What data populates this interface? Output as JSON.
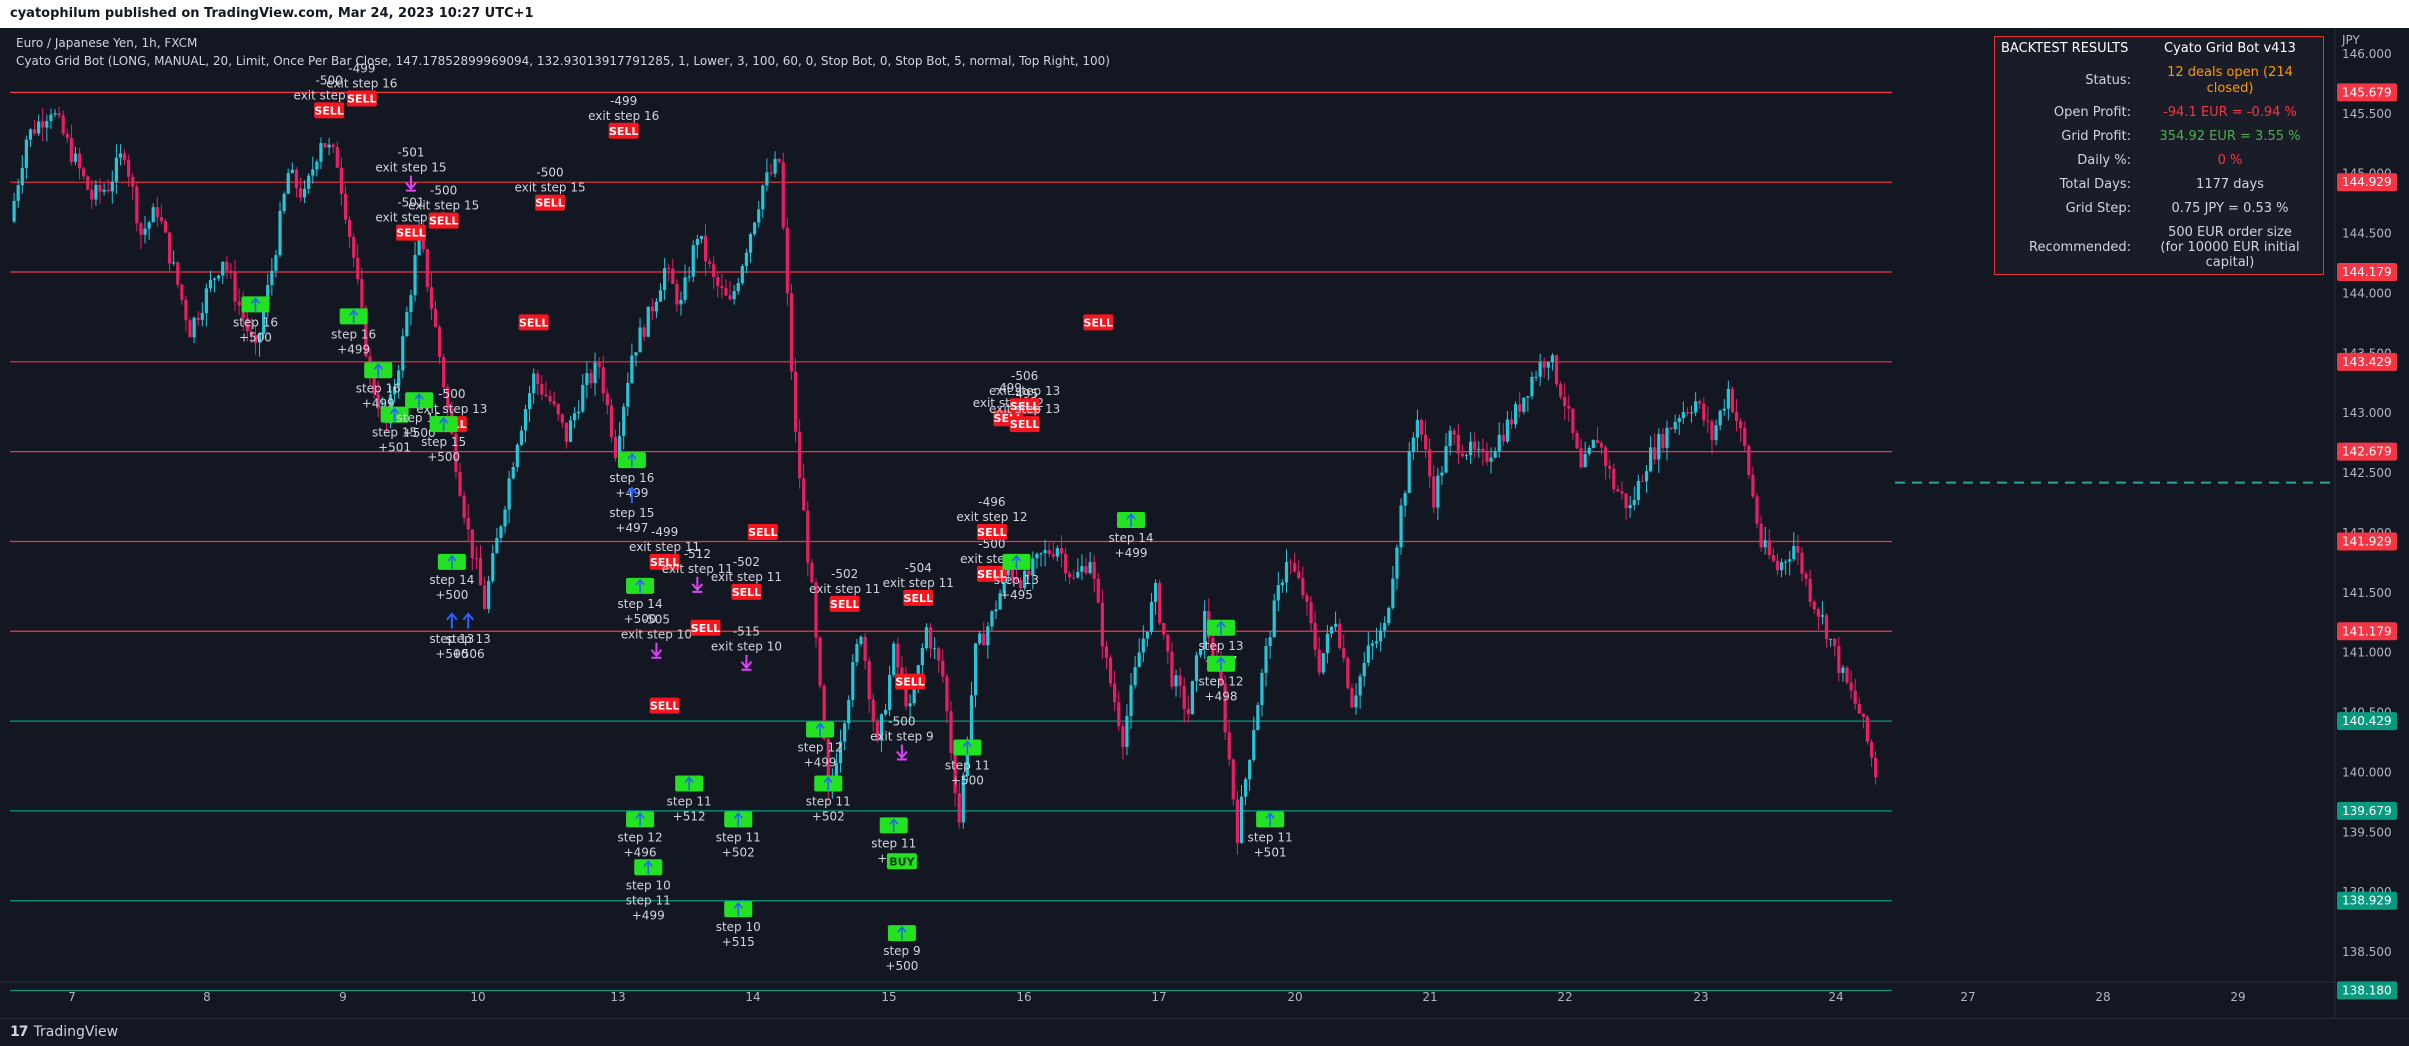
{
  "header": {
    "published": "cyatophilum published on TradingView.com, Mar 24, 2023 10:27 UTC+1"
  },
  "legend": {
    "symbol": "Euro / Japanese Yen, 1h, FXCM",
    "indicator": "Cyato Grid Bot (LONG, MANUAL, 20, Limit, Once Per Bar Close, 147.17852899969094, 132.93013917791285, 1, Lower, 3, 100, 60, 0, Stop Bot, 0, Stop Bot, 5, normal, Top Right, 100)"
  },
  "footer": {
    "brand": "TradingView"
  },
  "backtest": {
    "title": "BACKTEST RESULTS",
    "bot": "Cyato Grid Bot v413",
    "rows": [
      {
        "k": "Status:",
        "v": "12 deals open (214 closed)",
        "color": "#ff9800"
      },
      {
        "k": "Open Profit:",
        "v": "-94.1 EUR = -0.94 %",
        "color": "#f23645"
      },
      {
        "k": "Grid Profit:",
        "v": "354.92 EUR = 3.55 %",
        "color": "#4caf50"
      },
      {
        "k": "Daily %:",
        "v": "0 %",
        "color": "#f23645"
      },
      {
        "k": "Total Days:",
        "v": "1177 days",
        "color": "#d1d4dc"
      },
      {
        "k": "Grid Step:",
        "v": "0.75 JPY = 0.53 %",
        "color": "#d1d4dc"
      },
      {
        "k": "Recommended:",
        "v": "500 EUR order size",
        "v2": "(for 10000 EUR initial capital)",
        "color": "#d1d4dc"
      }
    ]
  },
  "colors": {
    "up": "#26c6da",
    "down": "#e91e63",
    "sell_line": "#f23645",
    "buy_line": "#089981",
    "sell_badge": "#f7151f",
    "buy_badge": "#22e222",
    "exit_marker": "#e040fb",
    "entry_arrow": "#2962ff"
  },
  "chart_data": {
    "type": "candlestick",
    "currency_label": "JPY",
    "x_ticks": [
      "7",
      "8",
      "9",
      "10",
      "13",
      "14",
      "15",
      "16",
      "17",
      "20",
      "21",
      "22",
      "23",
      "24",
      "27",
      "28",
      "29"
    ],
    "y_ticks": [
      "146.000",
      "145.500",
      "145.000",
      "144.500",
      "144.000",
      "143.500",
      "143.000",
      "142.500",
      "142.000",
      "141.500",
      "141.000",
      "140.500",
      "140.000",
      "139.500",
      "139.000",
      "138.500"
    ],
    "ylim": [
      138.1,
      146.2
    ],
    "grid_levels": [
      {
        "price": 145.679,
        "label": "145.679",
        "type": "sell"
      },
      {
        "price": 144.929,
        "label": "144.929",
        "type": "sell"
      },
      {
        "price": 144.179,
        "label": "144.179",
        "type": "sell"
      },
      {
        "price": 143.429,
        "label": "143.429",
        "type": "sell"
      },
      {
        "price": 142.679,
        "label": "142.679",
        "type": "sell"
      },
      {
        "price": 141.929,
        "label": "141.929",
        "type": "sell"
      },
      {
        "price": 141.179,
        "label": "141.179",
        "type": "sell"
      },
      {
        "price": 140.429,
        "label": "140.429",
        "type": "buy"
      },
      {
        "price": 139.679,
        "label": "139.679",
        "type": "buy"
      },
      {
        "price": 138.929,
        "label": "138.929",
        "type": "buy"
      },
      {
        "price": 138.18,
        "label": "138.180",
        "type": "buy"
      }
    ],
    "current_price_line": 142.42,
    "price_path": [
      [
        0,
        144.6
      ],
      [
        2,
        145.3
      ],
      [
        5,
        145.55
      ],
      [
        8,
        145.1
      ],
      [
        10,
        144.8
      ],
      [
        12,
        144.9
      ],
      [
        14,
        145.2
      ],
      [
        16,
        144.5
      ],
      [
        18,
        144.7
      ],
      [
        20,
        144.2
      ],
      [
        22,
        143.7
      ],
      [
        24,
        144.0
      ],
      [
        26,
        144.3
      ],
      [
        28,
        143.9
      ],
      [
        30,
        143.5
      ],
      [
        32,
        144.2
      ],
      [
        34,
        145.0
      ],
      [
        36,
        144.8
      ],
      [
        38,
        145.3
      ],
      [
        40,
        145.1
      ],
      [
        42,
        144.3
      ],
      [
        44,
        143.3
      ],
      [
        46,
        142.9
      ],
      [
        48,
        143.6
      ],
      [
        50,
        144.5
      ],
      [
        52,
        143.7
      ],
      [
        54,
        142.8
      ],
      [
        56,
        142.0
      ],
      [
        58,
        141.4
      ],
      [
        60,
        142.1
      ],
      [
        62,
        142.8
      ],
      [
        64,
        143.3
      ],
      [
        66,
        143.1
      ],
      [
        68,
        142.8
      ],
      [
        70,
        143.2
      ],
      [
        72,
        143.4
      ],
      [
        74,
        142.7
      ],
      [
        76,
        143.5
      ],
      [
        78,
        143.8
      ],
      [
        80,
        144.2
      ],
      [
        82,
        143.9
      ],
      [
        84,
        144.5
      ],
      [
        86,
        144.1
      ],
      [
        88,
        143.9
      ],
      [
        90,
        144.4
      ],
      [
        92,
        144.9
      ],
      [
        94,
        145.1
      ],
      [
        96,
        142.8
      ],
      [
        98,
        141.5
      ],
      [
        100,
        139.8
      ],
      [
        102,
        140.5
      ],
      [
        104,
        141.2
      ],
      [
        106,
        140.2
      ],
      [
        108,
        141.0
      ],
      [
        110,
        140.5
      ],
      [
        112,
        141.2
      ],
      [
        114,
        140.8
      ],
      [
        116,
        139.6
      ],
      [
        118,
        141.0
      ],
      [
        120,
        141.3
      ],
      [
        122,
        141.7
      ],
      [
        124,
        141.6
      ],
      [
        126,
        141.8
      ],
      [
        128,
        141.9
      ],
      [
        130,
        141.6
      ],
      [
        132,
        141.8
      ],
      [
        134,
        140.9
      ],
      [
        136,
        140.3
      ],
      [
        138,
        141.0
      ],
      [
        140,
        141.5
      ],
      [
        142,
        140.8
      ],
      [
        144,
        140.5
      ],
      [
        146,
        141.3
      ],
      [
        148,
        140.7
      ],
      [
        150,
        139.5
      ],
      [
        152,
        140.4
      ],
      [
        154,
        141.2
      ],
      [
        156,
        141.8
      ],
      [
        158,
        141.5
      ],
      [
        160,
        140.9
      ],
      [
        162,
        141.3
      ],
      [
        164,
        140.6
      ],
      [
        166,
        141.0
      ],
      [
        168,
        141.2
      ],
      [
        170,
        142.2
      ],
      [
        172,
        143.0
      ],
      [
        174,
        142.3
      ],
      [
        176,
        142.8
      ],
      [
        178,
        142.7
      ],
      [
        180,
        142.6
      ],
      [
        182,
        142.8
      ],
      [
        184,
        143.0
      ],
      [
        186,
        143.3
      ],
      [
        188,
        143.5
      ],
      [
        190,
        143.1
      ],
      [
        192,
        142.5
      ],
      [
        194,
        142.8
      ],
      [
        196,
        142.4
      ],
      [
        198,
        142.2
      ],
      [
        200,
        142.6
      ],
      [
        202,
        142.8
      ],
      [
        204,
        143.0
      ],
      [
        206,
        143.1
      ],
      [
        208,
        142.8
      ],
      [
        210,
        143.2
      ],
      [
        212,
        142.7
      ],
      [
        214,
        141.9
      ],
      [
        216,
        141.7
      ],
      [
        218,
        141.9
      ],
      [
        220,
        141.5
      ],
      [
        222,
        141.2
      ],
      [
        224,
        140.8
      ],
      [
        226,
        140.5
      ],
      [
        228,
        140.0
      ]
    ],
    "trade_labels": [
      {
        "kind": "sell",
        "t": 39,
        "p": 145.52,
        "lines": [
          "-500",
          "exit step 16"
        ]
      },
      {
        "kind": "sell",
        "t": 43,
        "p": 145.62,
        "lines": [
          "-499",
          "exit step 16"
        ]
      },
      {
        "kind": "exit",
        "t": 49,
        "p": 144.9,
        "lines": [
          "-501",
          "exit step 15"
        ]
      },
      {
        "kind": "sell",
        "t": 49,
        "p": 144.5,
        "lines": [
          "-501",
          "exit step 15"
        ]
      },
      {
        "kind": "sell",
        "t": 53,
        "p": 144.6,
        "lines": [
          "-500",
          "exit step 15"
        ]
      },
      {
        "kind": "sell",
        "t": 66,
        "p": 144.75,
        "lines": [
          "-500",
          "exit step 15"
        ]
      },
      {
        "kind": "sell",
        "t": 64,
        "p": 143.75,
        "lines": [
          "SELL"
        ]
      },
      {
        "kind": "sell",
        "t": 75,
        "p": 145.35,
        "lines": [
          "-499",
          "exit step 16"
        ]
      },
      {
        "kind": "sell",
        "t": 54,
        "p": 142.9,
        "lines": [
          "-500",
          "exit step 13"
        ]
      },
      {
        "kind": "buy",
        "t": 30,
        "p": 143.9,
        "lines": [
          "step 16",
          "+500"
        ]
      },
      {
        "kind": "buy",
        "t": 42,
        "p": 143.8,
        "lines": [
          "step 16",
          "+499"
        ]
      },
      {
        "kind": "buy",
        "t": 45,
        "p": 143.35,
        "lines": [
          "step 16",
          "+499"
        ]
      },
      {
        "kind": "buy",
        "t": 47,
        "p": 142.98,
        "lines": [
          "step 15",
          "+501"
        ]
      },
      {
        "kind": "buy",
        "t": 50,
        "p": 143.1,
        "lines": [
          "step 15",
          "+500"
        ]
      },
      {
        "kind": "buy",
        "t": 53,
        "p": 142.9,
        "lines": [
          "step 15",
          "+500"
        ]
      },
      {
        "kind": "buy",
        "t": 54,
        "p": 141.75,
        "lines": [
          "step 14",
          "+500"
        ]
      },
      {
        "kind": "entry",
        "t": 54,
        "p": 141.2,
        "lines": [
          "step 13",
          "+500"
        ]
      },
      {
        "kind": "entry",
        "t": 56,
        "p": 141.2,
        "lines": [
          "step 13",
          "+506"
        ]
      },
      {
        "kind": "buy",
        "t": 76,
        "p": 142.6,
        "lines": [
          "step 16",
          "+499"
        ]
      },
      {
        "kind": "entry",
        "t": 76,
        "p": 142.25,
        "lines": [
          "step 15",
          "+497"
        ]
      },
      {
        "kind": "buy",
        "t": 77,
        "p": 141.55,
        "lines": [
          "step 14",
          "+500"
        ]
      },
      {
        "kind": "exit",
        "t": 79,
        "p": 141.0,
        "lines": [
          "-505",
          "exit step 10"
        ]
      },
      {
        "kind": "sell",
        "t": 80,
        "p": 141.75,
        "lines": [
          "-499",
          "exit step 11"
        ]
      },
      {
        "kind": "exit",
        "t": 84,
        "p": 141.55,
        "lines": [
          "-512",
          "exit step 11"
        ]
      },
      {
        "kind": "sell",
        "t": 80,
        "p": 140.55,
        "lines": [
          "SELL"
        ]
      },
      {
        "kind": "sell",
        "t": 85,
        "p": 141.2,
        "lines": [
          "SELL"
        ]
      },
      {
        "kind": "buy",
        "t": 77,
        "p": 139.6,
        "lines": [
          "step 12",
          "+496"
        ]
      },
      {
        "kind": "buy",
        "t": 78,
        "p": 139.2,
        "lines": [
          "step 10",
          "step 11",
          "+499"
        ]
      },
      {
        "kind": "buy",
        "t": 83,
        "p": 139.9,
        "lines": [
          "step 11",
          "+512"
        ]
      },
      {
        "kind": "sell",
        "t": 92,
        "p": 142.0,
        "lines": [
          "SELL"
        ]
      },
      {
        "kind": "sell",
        "t": 90,
        "p": 141.5,
        "lines": [
          "-502",
          "exit step 11"
        ]
      },
      {
        "kind": "exit",
        "t": 90,
        "p": 140.9,
        "lines": [
          "-515",
          "exit step 10"
        ]
      },
      {
        "kind": "buy",
        "t": 89,
        "p": 139.6,
        "lines": [
          "step 11",
          "+502"
        ]
      },
      {
        "kind": "buy",
        "t": 89,
        "p": 138.85,
        "lines": [
          "step 10",
          "+515"
        ]
      },
      {
        "kind": "buy",
        "t": 99,
        "p": 140.35,
        "lines": [
          "step 12",
          "+499"
        ]
      },
      {
        "kind": "sell",
        "t": 102,
        "p": 141.4,
        "lines": [
          "-502",
          "exit step 11"
        ]
      },
      {
        "kind": "buy",
        "t": 100,
        "p": 139.9,
        "lines": [
          "step 11",
          "+502"
        ]
      },
      {
        "kind": "sell",
        "t": 110,
        "p": 140.75,
        "lines": [
          "SELL"
        ]
      },
      {
        "kind": "exit",
        "t": 109,
        "p": 140.15,
        "lines": [
          "-500",
          "exit step 9"
        ]
      },
      {
        "kind": "sell",
        "t": 111,
        "p": 141.45,
        "lines": [
          "-504",
          "exit step 11"
        ]
      },
      {
        "kind": "buy",
        "t": 108,
        "p": 139.55,
        "lines": [
          "step 11",
          "+504"
        ]
      },
      {
        "kind": "buy",
        "t": 109,
        "p": 139.25,
        "lines": [
          "BUY"
        ]
      },
      {
        "kind": "buy",
        "t": 109,
        "p": 138.65,
        "lines": [
          "step 9",
          "+500"
        ]
      },
      {
        "kind": "buy",
        "t": 117,
        "p": 140.2,
        "lines": [
          "step 11",
          "+500"
        ]
      },
      {
        "kind": "sell",
        "t": 120,
        "p": 141.65,
        "lines": [
          "-500",
          "exit step 1"
        ]
      },
      {
        "kind": "sell",
        "t": 120,
        "p": 142.0,
        "lines": [
          "-496",
          "exit step 12"
        ]
      },
      {
        "kind": "sell",
        "t": 122,
        "p": 142.95,
        "lines": [
          "-499",
          "exit step 12"
        ]
      },
      {
        "kind": "sell",
        "t": 124,
        "p": 143.05,
        "lines": [
          "-506",
          "exit step 13"
        ]
      },
      {
        "kind": "sell",
        "t": 124,
        "p": 142.9,
        "lines": [
          "-495",
          "exit step 13"
        ]
      },
      {
        "kind": "buy",
        "t": 123,
        "p": 141.75,
        "lines": [
          "step 13",
          "+495"
        ]
      },
      {
        "kind": "sell",
        "t": 133,
        "p": 143.75,
        "lines": [
          "SELL"
        ]
      },
      {
        "kind": "buy",
        "t": 137,
        "p": 142.1,
        "lines": [
          "step 14",
          "+499"
        ]
      },
      {
        "kind": "buy",
        "t": 148,
        "p": 141.2,
        "lines": [
          "step 13",
          "+497"
        ]
      },
      {
        "kind": "buy",
        "t": 148,
        "p": 140.9,
        "lines": [
          "step 12",
          "+498"
        ]
      },
      {
        "kind": "buy",
        "t": 154,
        "p": 139.6,
        "lines": [
          "step 11",
          "+501"
        ]
      }
    ]
  }
}
